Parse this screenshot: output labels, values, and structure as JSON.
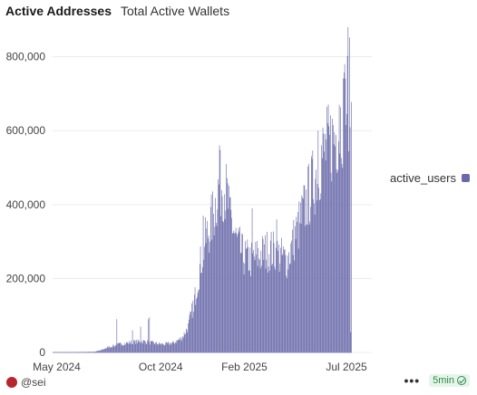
{
  "header": {
    "title": "Active Addresses",
    "subtitle": "Total Active Wallets"
  },
  "chart_data": {
    "type": "bar",
    "series": [
      {
        "name": "active_users",
        "color": "#6a6aaa"
      }
    ],
    "x_ticks": [
      "May 2024",
      "Oct 2024",
      "Feb 2025",
      "Jul 2025"
    ],
    "y_ticks": [
      "0",
      "200,000",
      "400,000",
      "600,000",
      "800,000"
    ],
    "ylim": [
      0,
      880000
    ],
    "grid": true,
    "legend_position": "right",
    "anchors": [
      {
        "x": "2024-04-25",
        "y": 0
      },
      {
        "x": "2024-06-25",
        "y": 2000
      },
      {
        "x": "2024-07-05",
        "y": 6000
      },
      {
        "x": "2024-07-15",
        "y": 14000
      },
      {
        "x": "2024-08-01",
        "y": 22000
      },
      {
        "x": "2024-08-20",
        "y": 28000
      },
      {
        "x": "2024-09-05",
        "y": 30000
      },
      {
        "x": "2024-09-20",
        "y": 25000
      },
      {
        "x": "2024-10-05",
        "y": 22000
      },
      {
        "x": "2024-10-20",
        "y": 26000
      },
      {
        "x": "2024-11-01",
        "y": 40000
      },
      {
        "x": "2024-11-10",
        "y": 70000
      },
      {
        "x": "2024-11-20",
        "y": 150000
      },
      {
        "x": "2024-11-28",
        "y": 240000
      },
      {
        "x": "2024-12-05",
        "y": 300000
      },
      {
        "x": "2024-12-12",
        "y": 340000
      },
      {
        "x": "2024-12-18",
        "y": 380000
      },
      {
        "x": "2024-12-24",
        "y": 440000
      },
      {
        "x": "2024-12-30",
        "y": 460000
      },
      {
        "x": "2025-01-05",
        "y": 430000
      },
      {
        "x": "2025-01-12",
        "y": 360000
      },
      {
        "x": "2025-01-20",
        "y": 300000
      },
      {
        "x": "2025-01-30",
        "y": 260000
      },
      {
        "x": "2025-02-10",
        "y": 250000
      },
      {
        "x": "2025-02-25",
        "y": 265000
      },
      {
        "x": "2025-03-10",
        "y": 280000
      },
      {
        "x": "2025-03-25",
        "y": 260000
      },
      {
        "x": "2025-04-05",
        "y": 250000
      },
      {
        "x": "2025-04-15",
        "y": 310000
      },
      {
        "x": "2025-04-25",
        "y": 360000
      },
      {
        "x": "2025-05-05",
        "y": 420000
      },
      {
        "x": "2025-05-15",
        "y": 470000
      },
      {
        "x": "2025-05-25",
        "y": 530000
      },
      {
        "x": "2025-06-05",
        "y": 560000
      },
      {
        "x": "2025-06-15",
        "y": 590000
      },
      {
        "x": "2025-06-25",
        "y": 640000
      },
      {
        "x": "2025-07-02",
        "y": 680000
      },
      {
        "x": "2025-07-05",
        "y": 700000
      }
    ],
    "spikes": [
      {
        "x": "2024-07-28",
        "y": 90000
      },
      {
        "x": "2024-09-01",
        "y": 70000
      },
      {
        "x": "2024-09-12",
        "y": 90000
      },
      {
        "x": "2024-09-14",
        "y": 95000
      },
      {
        "x": "2024-08-20",
        "y": 60000
      },
      {
        "x": "2024-11-18",
        "y": 110000
      },
      {
        "x": "2024-12-02",
        "y": 370000
      },
      {
        "x": "2024-12-26",
        "y": 560000
      },
      {
        "x": "2025-01-10",
        "y": 420000
      },
      {
        "x": "2025-02-12",
        "y": 390000
      },
      {
        "x": "2025-03-20",
        "y": 360000
      },
      {
        "x": "2025-05-20",
        "y": 600000
      },
      {
        "x": "2025-06-20",
        "y": 670000
      },
      {
        "x": "2025-06-28",
        "y": 780000
      },
      {
        "x": "2025-07-03",
        "y": 880000
      },
      {
        "x": "2025-07-07",
        "y": 55000
      }
    ]
  },
  "footer": {
    "handle": "@sei",
    "refresh": "5min",
    "more": "•••"
  },
  "colors": {
    "bar": "#6a6aaa",
    "grid": "#ececec",
    "sei": "#b8262d"
  },
  "icons": {
    "sei": "sei-logo-icon",
    "more": "more-icon",
    "check": "check-circle-icon"
  }
}
